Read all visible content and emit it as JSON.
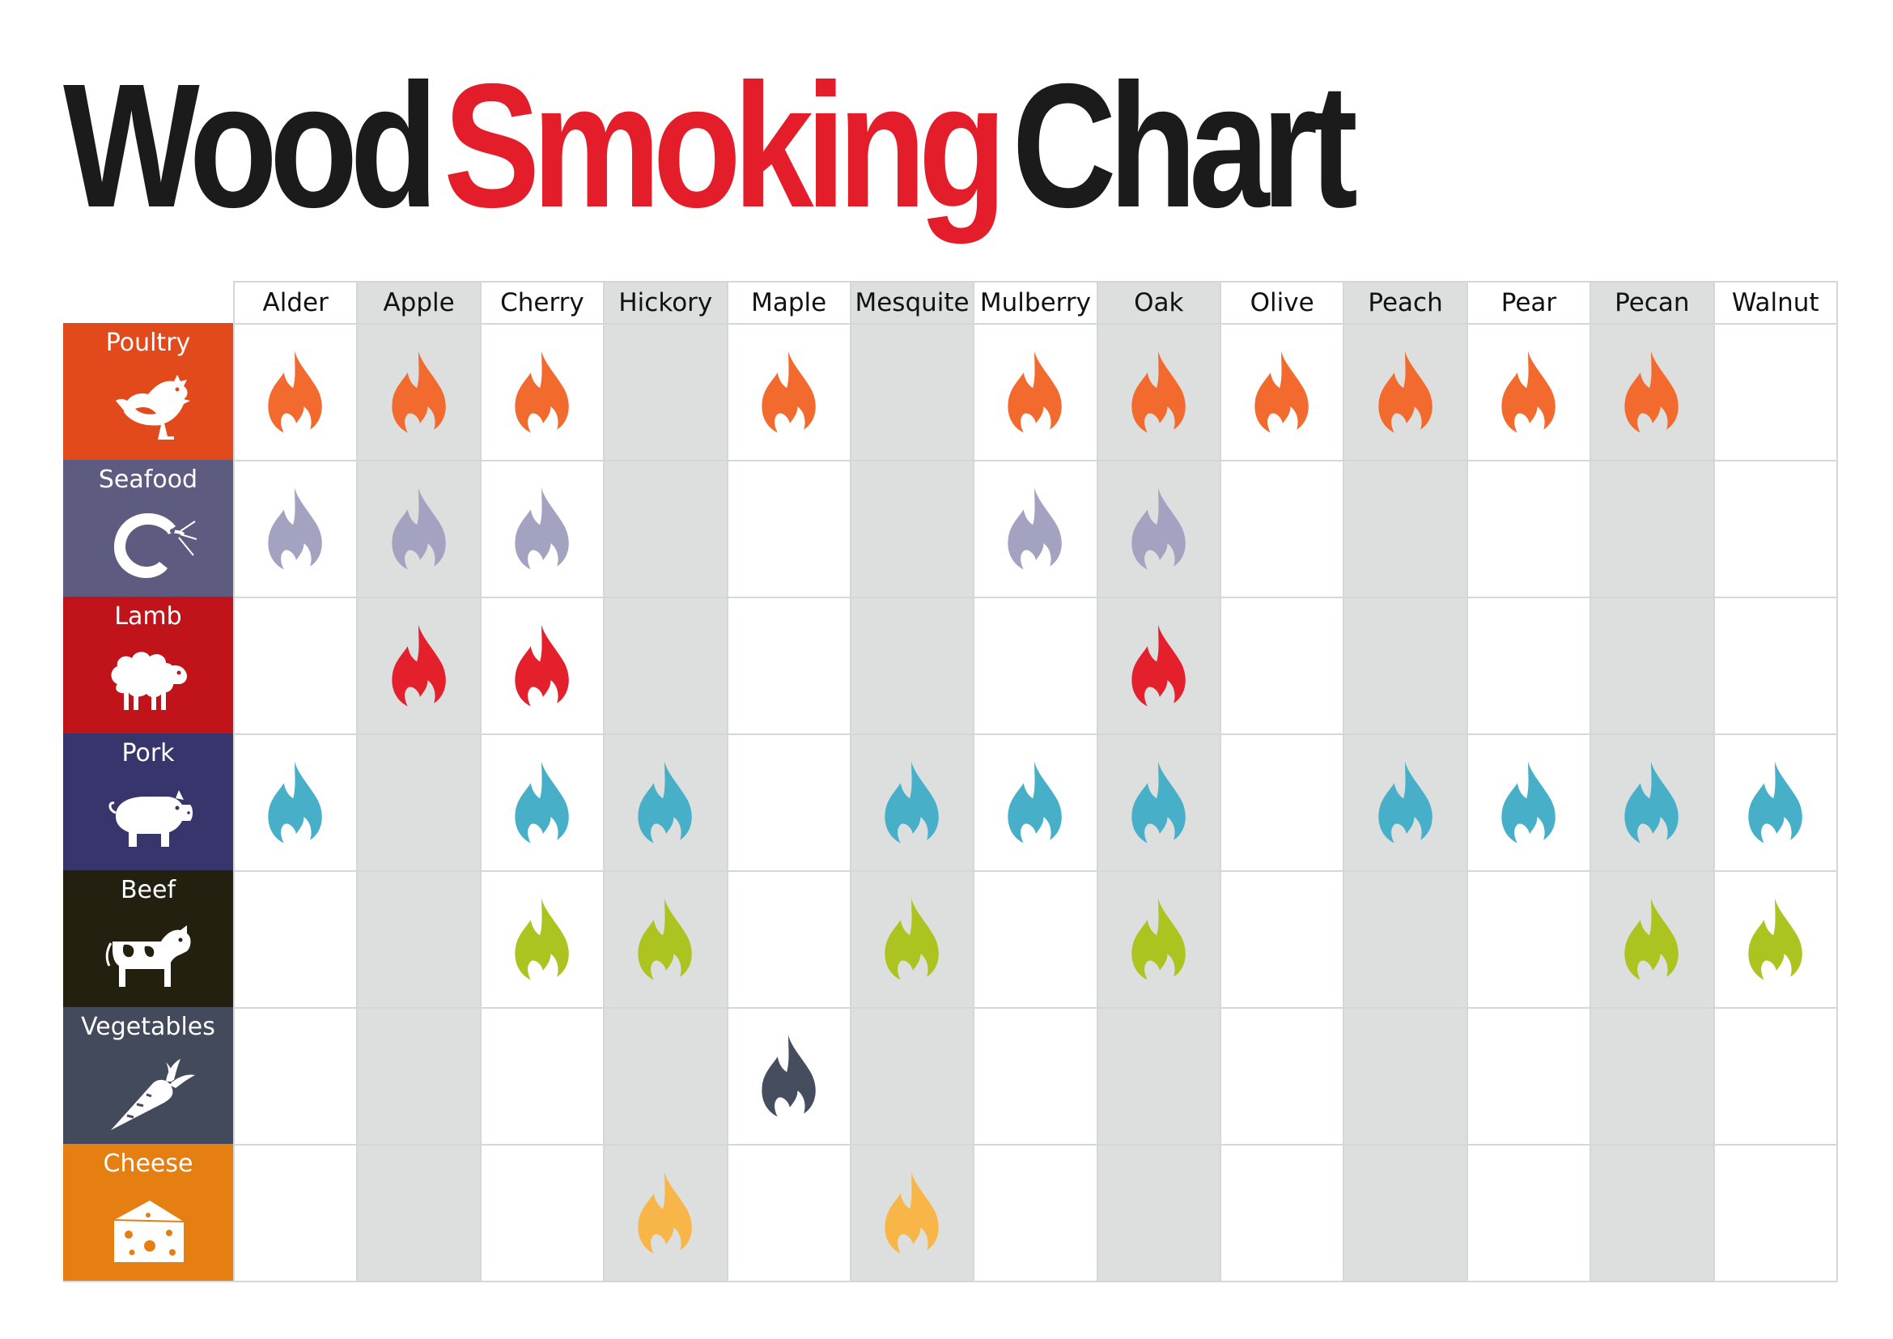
{
  "title": {
    "word1": "Wood",
    "word2": "Smoking",
    "word3": "Chart"
  },
  "colors": {
    "title_dark": "#1b1b1b",
    "title_accent": "#e31e2a",
    "shaded_column": "#dcdfdd",
    "grid_line": "#d4d7d5"
  },
  "chart_data": {
    "type": "table",
    "title": "Wood Smoking Chart",
    "columns": [
      "Alder",
      "Apple",
      "Cherry",
      "Hickory",
      "Maple",
      "Mesquite",
      "Mulberry",
      "Oak",
      "Olive",
      "Peach",
      "Pear",
      "Pecan",
      "Walnut"
    ],
    "shaded_columns": [
      "Apple",
      "Hickory",
      "Mesquite",
      "Oak",
      "Peach",
      "Pecan"
    ],
    "rows": [
      {
        "label": "Poultry",
        "icon": "chicken-icon",
        "color": "#e24a1c",
        "flame_color": "#f26a2e",
        "woods": [
          "Alder",
          "Apple",
          "Cherry",
          "Maple",
          "Mulberry",
          "Oak",
          "Olive",
          "Peach",
          "Pear",
          "Pecan"
        ]
      },
      {
        "label": "Seafood",
        "icon": "shrimp-icon",
        "color": "#5e5b80",
        "flame_color": "#a3a2c0",
        "woods": [
          "Alder",
          "Apple",
          "Cherry",
          "Mulberry",
          "Oak"
        ]
      },
      {
        "label": "Lamb",
        "icon": "sheep-icon",
        "color": "#c0141a",
        "flame_color": "#e3202c",
        "woods": [
          "Apple",
          "Cherry",
          "Oak"
        ]
      },
      {
        "label": "Pork",
        "icon": "pig-icon",
        "color": "#38346c",
        "flame_color": "#47b0c8",
        "woods": [
          "Alder",
          "Cherry",
          "Hickory",
          "Mesquite",
          "Mulberry",
          "Oak",
          "Peach",
          "Pear",
          "Pecan",
          "Walnut"
        ]
      },
      {
        "label": "Beef",
        "icon": "cow-icon",
        "color": "#24200f",
        "flame_color": "#adc31f",
        "woods": [
          "Cherry",
          "Hickory",
          "Mesquite",
          "Oak",
          "Pecan",
          "Walnut"
        ]
      },
      {
        "label": "Vegetables",
        "icon": "carrot-icon",
        "color": "#424a5c",
        "flame_color": "#464d5e",
        "woods": [
          "Maple"
        ]
      },
      {
        "label": "Cheese",
        "icon": "cheese-icon",
        "color": "#e57f12",
        "flame_color": "#f8b648",
        "woods": [
          "Hickory",
          "Mesquite"
        ]
      }
    ]
  }
}
